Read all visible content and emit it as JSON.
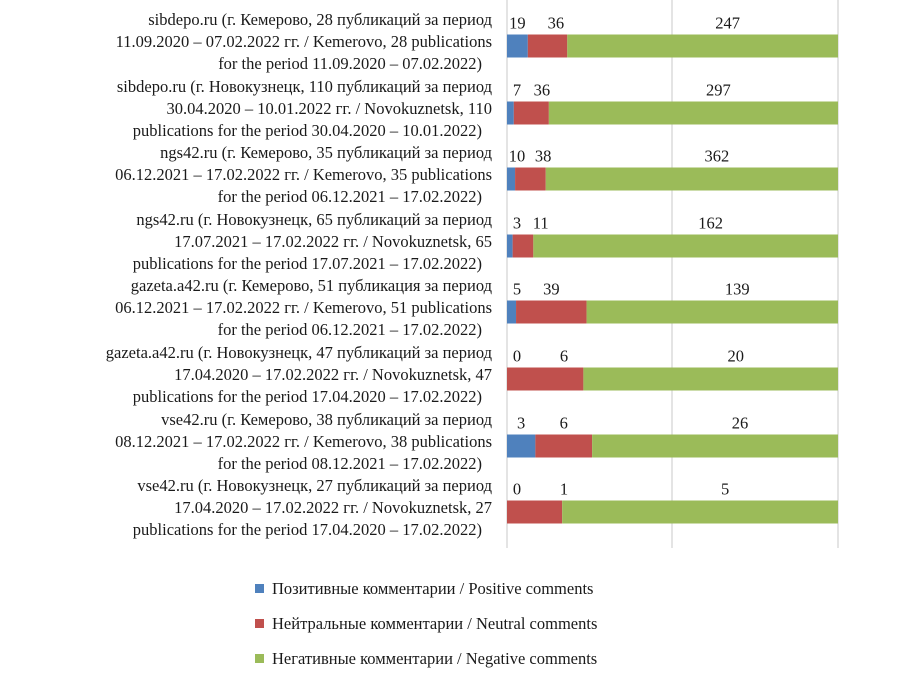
{
  "chart_data": {
    "type": "bar",
    "orientation": "horizontal",
    "stacked": "percent",
    "grid": true,
    "legend_position": "bottom",
    "colors": {
      "positive": "#4F81BD",
      "neutral": "#C0504D",
      "negative": "#9BBB59"
    },
    "categories": [
      [
        "sibdepo.ru (г. Кемерово, 28 публикаций за период",
        "11.09.2020 – 07.02.2022 гг. / Kemerovo, 28 publications",
        "for the period 11.09.2020 – 07.02.2022)"
      ],
      [
        "sibdepo.ru (г. Новокузнецк, 110 публикаций за период",
        "30.04.2020 – 10.01.2022 гг. / Novokuznetsk, 110",
        "publications for the period 30.04.2020 – 10.01.2022)"
      ],
      [
        "ngs42.ru (г. Кемерово, 35 публикаций за период",
        "06.12.2021 – 17.02.2022 гг. / Kemerovo, 35 publications",
        "for the period 06.12.2021 – 17.02.2022)"
      ],
      [
        "ngs42.ru (г. Новокузнецк, 65 публикаций за период",
        "17.07.2021 – 17.02.2022 гг. / Novokuznetsk, 65",
        "publications for the period 17.07.2021 – 17.02.2022)"
      ],
      [
        "gazeta.a42.ru (г. Кемерово, 51 публикация за период",
        "06.12.2021 – 17.02.2022 гг. / Kemerovo, 51 publications",
        "for the period 06.12.2021 – 17.02.2022)"
      ],
      [
        "gazeta.a42.ru (г. Новокузнецк, 47 публикаций за период",
        "17.04.2020 – 17.02.2022 гг. / Novokuznetsk, 47",
        "publications for the period 17.04.2020 – 17.02.2022)"
      ],
      [
        "vse42.ru (г. Кемерово, 38 публикаций за период",
        "08.12.2021 – 17.02.2022 гг. / Kemerovo, 38 publications",
        "for the period 08.12.2021 – 17.02.2022)"
      ],
      [
        "vse42.ru (г. Новокузнецк, 27 публикаций за период",
        "17.04.2020 – 17.02.2022 гг. / Novokuznetsk, 27",
        "publications for the period 17.04.2020 – 17.02.2022)"
      ]
    ],
    "series": [
      {
        "name": "Позитивные комментарии / Positive comments",
        "key": "positive",
        "values": [
          19,
          7,
          10,
          3,
          5,
          0,
          3,
          0
        ]
      },
      {
        "name": "Нейтральные комментарии / Neutral comments",
        "key": "neutral",
        "values": [
          36,
          36,
          38,
          11,
          39,
          6,
          6,
          1
        ]
      },
      {
        "name": "Негативные комментарии / Negative comments",
        "key": "negative",
        "values": [
          247,
          297,
          362,
          162,
          139,
          20,
          26,
          5
        ]
      }
    ],
    "xlim": [
      0,
      100
    ],
    "xlabel": "",
    "ylabel": ""
  }
}
